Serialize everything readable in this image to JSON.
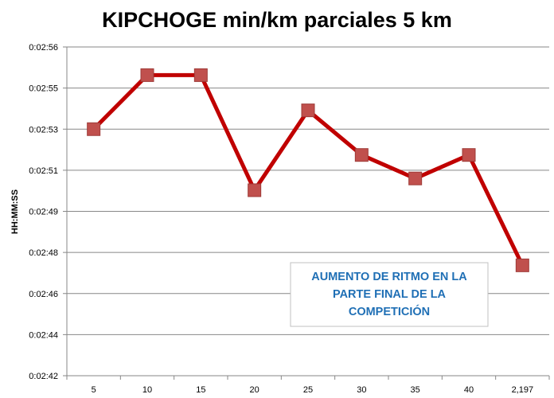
{
  "chart_data": {
    "type": "line",
    "title": "KIPCHOGE min/km parciales 5 km",
    "xlabel": "",
    "ylabel": "HH:MM:SS",
    "categories": [
      "5",
      "10",
      "15",
      "20",
      "25",
      "30",
      "35",
      "40",
      "2,197"
    ],
    "y_tick_labels": [
      "0:02:42",
      "0:02:44",
      "0:02:46",
      "0:02:48",
      "0:02:49",
      "0:02:51",
      "0:02:53",
      "0:02:55",
      "0:02:56"
    ],
    "ylim_seconds": [
      162,
      176
    ],
    "series": [
      {
        "values_seconds": [
          172.5,
          174.8,
          174.8,
          169.9,
          173.3,
          171.4,
          170.4,
          171.4,
          166.7
        ],
        "color": "#c00000",
        "marker_color": "#c0504d"
      }
    ],
    "grid": true,
    "legend": "none",
    "annotation": {
      "lines": [
        "AUMENTO DE RITMO EN LA",
        "PARTE FINAL DE LA",
        "COMPETICIÓN"
      ],
      "color": "#1f6fb5"
    }
  }
}
